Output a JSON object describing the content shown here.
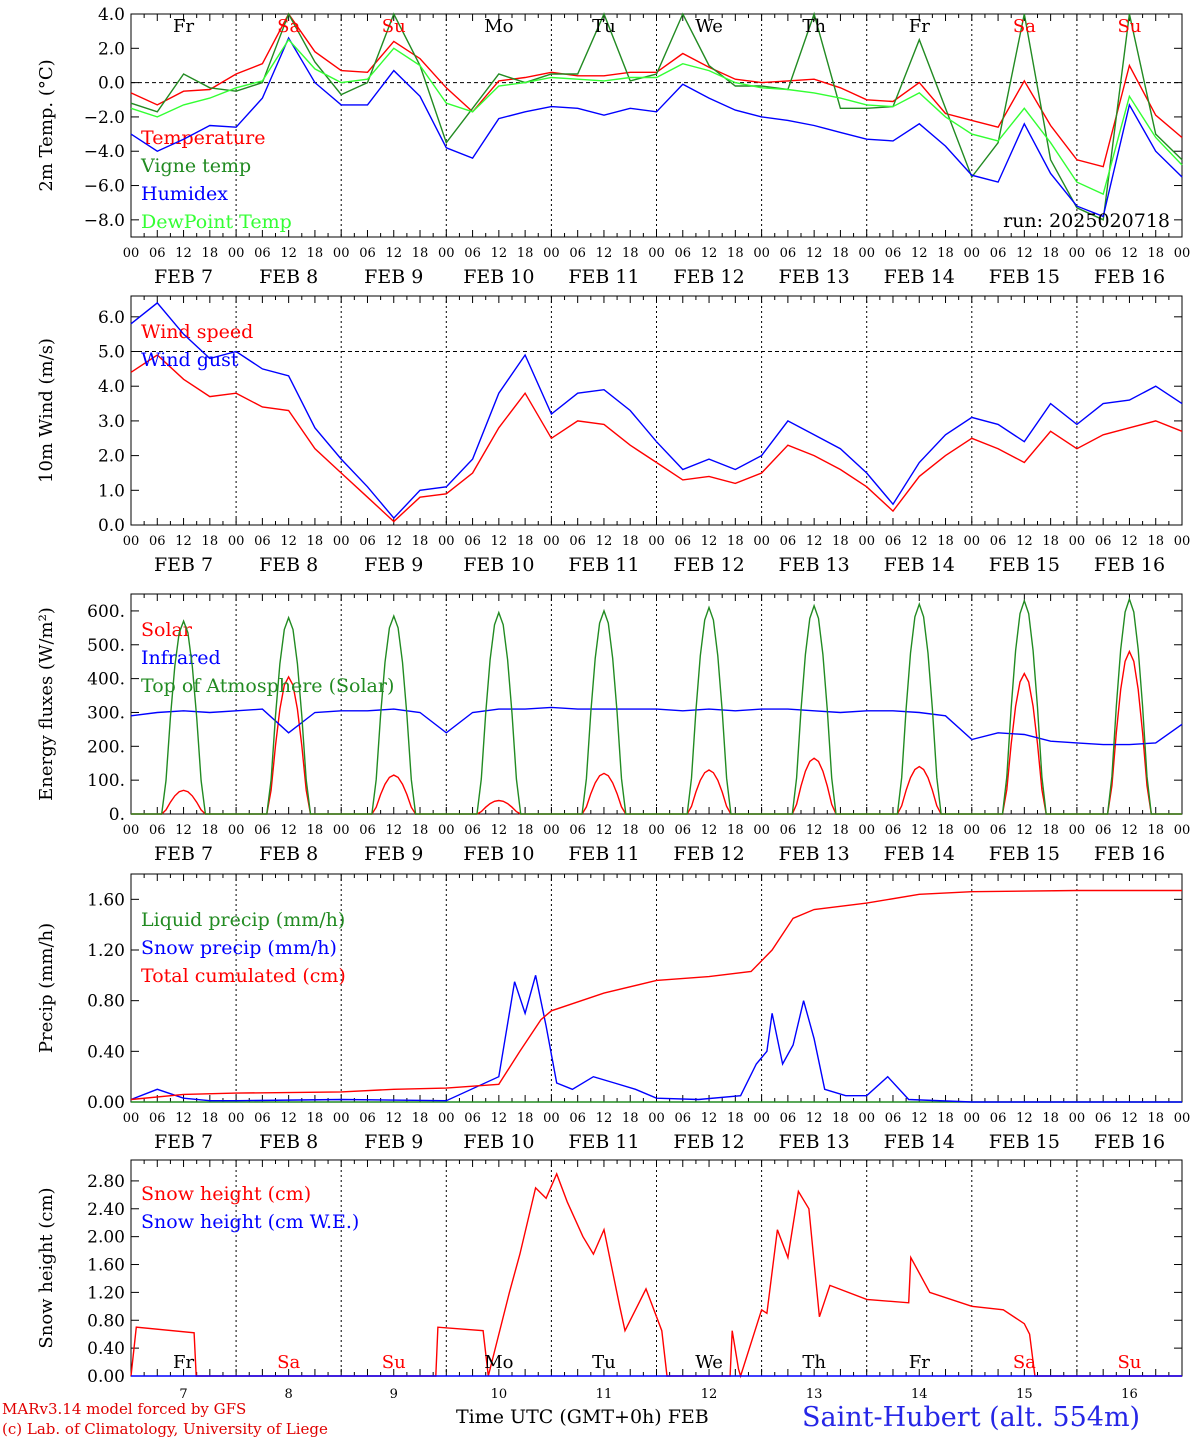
{
  "run_label": "run: 2025020718",
  "footer": {
    "credit_line1": "MARv3.14 model forced by GFS",
    "credit_line2": "(c) Lab. of Climatology, University of Liege",
    "xaxis_title": "Time UTC (GMT+0h)",
    "xaxis_month": "FEB",
    "station": "Saint-Hubert (alt. 554m)"
  },
  "days": {
    "weekday_labels": [
      "Fr",
      "Sa",
      "Su",
      "Mo",
      "Tu",
      "We",
      "Th",
      "Fr",
      "Sa",
      "Su"
    ],
    "weekend_flags": [
      false,
      true,
      true,
      false,
      false,
      false,
      false,
      false,
      true,
      true
    ],
    "date_labels": [
      "FEB  7",
      "FEB  8",
      "FEB  9",
      "FEB 10",
      "FEB 11",
      "FEB 12",
      "FEB 13",
      "FEB 14",
      "FEB 15",
      "FEB 16"
    ],
    "day_numbers": [
      "7",
      "8",
      "9",
      "10",
      "11",
      "12",
      "13",
      "14",
      "15",
      "16"
    ],
    "hour_labels": [
      "00",
      "06",
      "12",
      "18"
    ],
    "final_hour_label": "00"
  },
  "colors": {
    "red": "#ff0000",
    "green": "#228b22",
    "blue": "#0000ff",
    "lightgreen": "#33ff33"
  },
  "chart_data": [
    {
      "type": "line",
      "ylabel": "2m Temp. (°C)",
      "ylim": [
        -9,
        4
      ],
      "yticks": [
        4,
        2,
        0,
        -2,
        -4,
        -6,
        -8
      ],
      "ytick_labels": [
        "4.0",
        "2.0",
        "0.0",
        "−2.0",
        "−4.0",
        "−6.0",
        "−8.0"
      ],
      "dashed_ref": 0,
      "x_unit": "days from 7 Feb 00 UTC",
      "series": [
        {
          "name": "Temperature",
          "color": "#ff0000",
          "x": [
            0,
            0.25,
            0.5,
            0.75,
            1,
            1.25,
            1.5,
            1.75,
            2,
            2.25,
            2.5,
            2.75,
            3,
            3.25,
            3.5,
            3.75,
            4,
            4.25,
            4.5,
            4.75,
            5,
            5.25,
            5.5,
            5.75,
            6,
            6.25,
            6.5,
            6.75,
            7,
            7.25,
            7.5,
            7.75,
            8,
            8.25,
            8.5,
            8.75,
            9,
            9.25,
            9.5,
            9.75,
            10
          ],
          "y": [
            -0.6,
            -1.3,
            -0.5,
            -0.4,
            0.5,
            1.1,
            4.0,
            1.8,
            0.7,
            0.6,
            2.4,
            1.4,
            -0.3,
            -1.7,
            0.1,
            0.3,
            0.6,
            0.4,
            0.4,
            0.6,
            0.6,
            1.7,
            0.9,
            0.2,
            0.0,
            0.1,
            0.2,
            -0.3,
            -1.0,
            -1.1,
            0.0,
            -1.8,
            -2.2,
            -2.6,
            0.1,
            -2.5,
            -4.5,
            -4.9,
            1.0,
            -1.9,
            -3.2
          ]
        },
        {
          "name": "Vigne temp",
          "color": "#228b22",
          "x": [
            0,
            0.25,
            0.5,
            0.75,
            1,
            1.25,
            1.5,
            1.75,
            2,
            2.25,
            2.5,
            2.75,
            3,
            3.25,
            3.5,
            3.75,
            4,
            4.25,
            4.5,
            4.75,
            5,
            5.25,
            5.5,
            5.75,
            6,
            6.25,
            6.5,
            6.75,
            7,
            7.25,
            7.5,
            7.75,
            8,
            8.25,
            8.5,
            8.75,
            9,
            9.25,
            9.5,
            9.75,
            10
          ],
          "y": [
            -1.2,
            -1.7,
            0.5,
            -0.3,
            -0.5,
            0.0,
            4.0,
            1.2,
            -0.7,
            0.0,
            4.0,
            1.0,
            -3.5,
            -1.5,
            0.5,
            0.0,
            0.5,
            0.5,
            4.0,
            0.1,
            0.5,
            4.0,
            1.0,
            -0.2,
            -0.2,
            -0.4,
            4.0,
            -1.5,
            -1.5,
            -1.4,
            2.5,
            -1.5,
            -5.5,
            -3.5,
            4.0,
            -4.5,
            -7.3,
            -8.0,
            4.0,
            -3.0,
            -4.5
          ]
        },
        {
          "name": "Humidex",
          "color": "#0000ff",
          "x": [
            0,
            0.25,
            0.5,
            0.75,
            1,
            1.25,
            1.5,
            1.75,
            2,
            2.25,
            2.5,
            2.75,
            3,
            3.25,
            3.5,
            3.75,
            4,
            4.25,
            4.5,
            4.75,
            5,
            5.25,
            5.5,
            5.75,
            6,
            6.25,
            6.5,
            6.75,
            7,
            7.25,
            7.5,
            7.75,
            8,
            8.25,
            8.5,
            8.75,
            9,
            9.25,
            9.5,
            9.75,
            10
          ],
          "y": [
            -3.0,
            -4.0,
            -3.3,
            -2.5,
            -2.6,
            -0.9,
            2.6,
            0.0,
            -1.3,
            -1.3,
            0.7,
            -0.8,
            -3.8,
            -4.4,
            -2.1,
            -1.7,
            -1.4,
            -1.5,
            -1.9,
            -1.5,
            -1.7,
            -0.1,
            -0.9,
            -1.6,
            -2.0,
            -2.2,
            -2.5,
            -2.9,
            -3.3,
            -3.4,
            -2.4,
            -3.7,
            -5.4,
            -5.8,
            -2.4,
            -5.3,
            -7.2,
            -7.8,
            -1.3,
            -4.0,
            -5.5
          ]
        },
        {
          "name": "DewPoint Temp",
          "color": "#33ff33",
          "x": [
            0,
            0.25,
            0.5,
            0.75,
            1,
            1.25,
            1.5,
            1.75,
            2,
            2.25,
            2.5,
            2.75,
            3,
            3.25,
            3.5,
            3.75,
            4,
            4.25,
            4.5,
            4.75,
            5,
            5.25,
            5.5,
            5.75,
            6,
            6.25,
            6.5,
            6.75,
            7,
            7.25,
            7.5,
            7.75,
            8,
            8.25,
            8.5,
            8.75,
            9,
            9.25,
            9.5,
            9.75,
            10
          ],
          "y": [
            -1.5,
            -2.0,
            -1.3,
            -0.9,
            -0.3,
            0.1,
            2.5,
            0.8,
            0.0,
            0.2,
            2.0,
            1.0,
            -1.2,
            -1.7,
            -0.2,
            0.0,
            0.3,
            0.2,
            0.1,
            0.3,
            0.3,
            1.1,
            0.7,
            0.0,
            -0.3,
            -0.4,
            -0.6,
            -0.9,
            -1.3,
            -1.4,
            -0.6,
            -2.0,
            -3.0,
            -3.4,
            -1.5,
            -3.5,
            -5.8,
            -6.5,
            -0.8,
            -3.2,
            -4.8
          ]
        }
      ]
    },
    {
      "type": "line",
      "ylabel": "10m Wind (m/s)",
      "ylim": [
        0,
        6.6
      ],
      "yticks": [
        0,
        1,
        2,
        3,
        4,
        5,
        6
      ],
      "ytick_labels": [
        "0.0",
        "1.0",
        "2.0",
        "3.0",
        "4.0",
        "5.0",
        "6.0"
      ],
      "dashed_ref": 5,
      "x_unit": "days from 7 Feb 00 UTC",
      "series": [
        {
          "name": "Wind speed",
          "color": "#ff0000",
          "x": [
            0,
            0.25,
            0.5,
            0.75,
            1,
            1.25,
            1.5,
            1.75,
            2,
            2.25,
            2.5,
            2.75,
            3,
            3.25,
            3.5,
            3.75,
            4,
            4.25,
            4.5,
            4.75,
            5,
            5.25,
            5.5,
            5.75,
            6,
            6.25,
            6.5,
            6.75,
            7,
            7.25,
            7.5,
            7.75,
            8,
            8.25,
            8.5,
            8.75,
            9,
            9.25,
            9.5,
            9.75,
            10
          ],
          "y": [
            4.4,
            4.9,
            4.2,
            3.7,
            3.8,
            3.4,
            3.3,
            2.2,
            1.5,
            0.8,
            0.1,
            0.8,
            0.9,
            1.5,
            2.8,
            3.8,
            2.5,
            3.0,
            2.9,
            2.3,
            1.8,
            1.3,
            1.4,
            1.2,
            1.5,
            2.3,
            2.0,
            1.6,
            1.1,
            0.4,
            1.4,
            2.0,
            2.5,
            2.2,
            1.8,
            2.7,
            2.2,
            2.6,
            2.8,
            3.0,
            2.7
          ]
        },
        {
          "name": "Wind gust",
          "color": "#0000ff",
          "x": [
            0,
            0.25,
            0.5,
            0.75,
            1,
            1.25,
            1.5,
            1.75,
            2,
            2.25,
            2.5,
            2.75,
            3,
            3.25,
            3.5,
            3.75,
            4,
            4.25,
            4.5,
            4.75,
            5,
            5.25,
            5.5,
            5.75,
            6,
            6.25,
            6.5,
            6.75,
            7,
            7.25,
            7.5,
            7.75,
            8,
            8.25,
            8.5,
            8.75,
            9,
            9.25,
            9.5,
            9.75,
            10
          ],
          "y": [
            5.8,
            6.4,
            5.5,
            4.8,
            5.0,
            4.5,
            4.3,
            2.8,
            1.9,
            1.1,
            0.2,
            1.0,
            1.1,
            1.9,
            3.8,
            4.9,
            3.2,
            3.8,
            3.9,
            3.3,
            2.4,
            1.6,
            1.9,
            1.6,
            2.0,
            3.0,
            2.6,
            2.2,
            1.5,
            0.6,
            1.8,
            2.6,
            3.1,
            2.9,
            2.4,
            3.5,
            2.9,
            3.5,
            3.6,
            4.0,
            3.5
          ]
        }
      ]
    },
    {
      "type": "line",
      "ylabel": "Energy fluxes (W/m²)",
      "ylim": [
        0,
        650
      ],
      "yticks": [
        0,
        100,
        200,
        300,
        400,
        500,
        600
      ],
      "ytick_labels": [
        "0.",
        "100.",
        "200.",
        "300.",
        "400.",
        "500.",
        "600."
      ],
      "x_unit": "days from 7 Feb 00 UTC",
      "series": [
        {
          "name": "Solar",
          "color": "#ff0000",
          "peaks": [
            70,
            405,
            115,
            40,
            120,
            130,
            165,
            140,
            415,
            480
          ]
        },
        {
          "name": "Infrared",
          "color": "#0000ff",
          "x": [
            0,
            0.25,
            0.5,
            0.75,
            1,
            1.25,
            1.5,
            1.75,
            2,
            2.25,
            2.5,
            2.75,
            3,
            3.25,
            3.5,
            3.75,
            4,
            4.25,
            4.5,
            4.75,
            5,
            5.25,
            5.5,
            5.75,
            6,
            6.25,
            6.5,
            6.75,
            7,
            7.25,
            7.5,
            7.75,
            8,
            8.25,
            8.5,
            8.75,
            9,
            9.25,
            9.5,
            9.75,
            10
          ],
          "y": [
            290,
            300,
            305,
            300,
            305,
            310,
            240,
            300,
            305,
            305,
            310,
            300,
            240,
            300,
            310,
            310,
            315,
            310,
            310,
            310,
            310,
            305,
            310,
            305,
            310,
            310,
            305,
            300,
            305,
            305,
            300,
            290,
            220,
            240,
            235,
            215,
            210,
            205,
            205,
            210,
            265
          ]
        },
        {
          "name": "Top of Atmosphere (Solar)",
          "color": "#228b22",
          "peaks": [
            570,
            580,
            585,
            595,
            600,
            610,
            615,
            620,
            630,
            635
          ]
        }
      ]
    },
    {
      "type": "line",
      "ylabel": "Precip (mm/h)",
      "ylim": [
        0,
        1.8
      ],
      "yticks": [
        0,
        0.4,
        0.8,
        1.2,
        1.6
      ],
      "ytick_labels": [
        "0.00",
        "0.40",
        "0.80",
        "1.20",
        "1.60"
      ],
      "x_unit": "days from 7 Feb 00 UTC",
      "series": [
        {
          "name": "Liquid precip (mm/h)",
          "color": "#228b22",
          "x": [
            0,
            10
          ],
          "y": [
            0,
            0
          ]
        },
        {
          "name": "Snow precip (mm/h)",
          "color": "#0000ff",
          "x": [
            0,
            0.25,
            0.5,
            0.75,
            1,
            2,
            3,
            3.5,
            3.65,
            3.75,
            3.85,
            3.95,
            4.05,
            4.2,
            4.4,
            4.6,
            4.8,
            5,
            5.4,
            5.8,
            5.95,
            6.05,
            6.1,
            6.2,
            6.3,
            6.4,
            6.5,
            6.6,
            6.8,
            7,
            7.2,
            7.4,
            8,
            10
          ],
          "y": [
            0.02,
            0.1,
            0.03,
            0.01,
            0.01,
            0.02,
            0.01,
            0.2,
            0.95,
            0.7,
            1.0,
            0.6,
            0.15,
            0.1,
            0.2,
            0.15,
            0.1,
            0.03,
            0.02,
            0.05,
            0.3,
            0.4,
            0.7,
            0.3,
            0.45,
            0.8,
            0.5,
            0.1,
            0.05,
            0.05,
            0.2,
            0.02,
            0.0,
            0.0
          ]
        },
        {
          "name": "Total cumulated (cm)",
          "color": "#ff0000",
          "x": [
            0,
            0.5,
            1,
            2,
            2.5,
            3,
            3.5,
            3.7,
            3.9,
            4,
            4.5,
            5,
            5.5,
            5.9,
            6.1,
            6.3,
            6.5,
            7,
            7.5,
            8,
            9,
            10
          ],
          "y": [
            0.02,
            0.06,
            0.07,
            0.08,
            0.1,
            0.11,
            0.14,
            0.4,
            0.65,
            0.72,
            0.86,
            0.96,
            0.99,
            1.03,
            1.2,
            1.45,
            1.52,
            1.57,
            1.64,
            1.66,
            1.67,
            1.67
          ]
        }
      ]
    },
    {
      "type": "line",
      "ylabel": "Snow height (cm)",
      "ylim": [
        0,
        3.1
      ],
      "yticks": [
        0,
        0.4,
        0.8,
        1.2,
        1.6,
        2.0,
        2.4,
        2.8
      ],
      "ytick_labels": [
        "0.00",
        "0.40",
        "0.80",
        "1.20",
        "1.60",
        "2.00",
        "2.40",
        "2.80"
      ],
      "x_unit": "days from 7 Feb 00 UTC",
      "series": [
        {
          "name": "Snow height (cm)",
          "color": "#ff0000",
          "x": [
            0,
            0.05,
            0.6,
            0.62,
            2.9,
            2.92,
            3.35,
            3.4,
            3.6,
            3.7,
            3.85,
            3.95,
            4.05,
            4.15,
            4.3,
            4.4,
            4.5,
            4.65,
            4.7,
            4.9,
            5.05,
            5.1,
            5.7,
            5.72,
            5.78,
            5.8,
            6.0,
            6.05,
            6.15,
            6.25,
            6.35,
            6.45,
            6.55,
            6.65,
            7.0,
            7.4,
            7.42,
            7.6,
            8.0,
            8.3,
            8.5,
            8.55,
            8.6,
            10
          ],
          "y": [
            0,
            0.7,
            0.62,
            0,
            0,
            0.7,
            0.65,
            0,
            1.2,
            1.75,
            2.7,
            2.55,
            2.9,
            2.5,
            2.0,
            1.75,
            2.1,
            1.0,
            0.65,
            1.25,
            0.65,
            0,
            0,
            0.65,
            0.1,
            0,
            0.95,
            0.9,
            2.1,
            1.7,
            2.65,
            2.4,
            0.85,
            1.3,
            1.1,
            1.05,
            1.7,
            1.2,
            1.0,
            0.95,
            0.75,
            0.6,
            0,
            0
          ]
        },
        {
          "name": "Snow height (cm W.E.)",
          "color": "#0000ff",
          "x": [
            0,
            10
          ],
          "y": [
            0,
            0
          ]
        }
      ]
    }
  ]
}
